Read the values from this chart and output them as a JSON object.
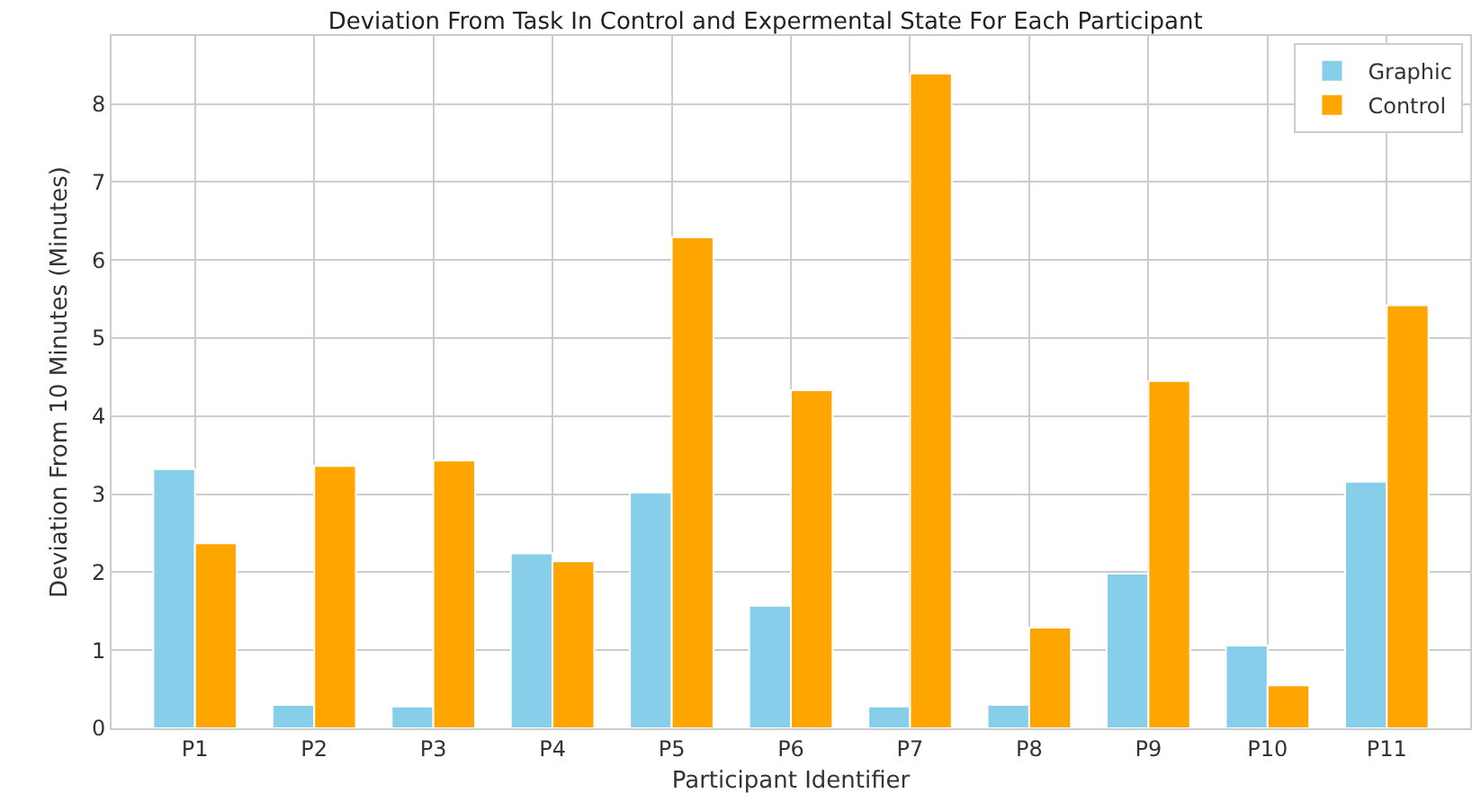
{
  "chart_data": {
    "type": "bar",
    "title": "Deviation From Task In Control and Expermental State For Each Participant",
    "xlabel": "Participant Identifier",
    "ylabel": "Deviation From 10 Minutes (Minutes)",
    "categories": [
      "P1",
      "P2",
      "P3",
      "P4",
      "P5",
      "P6",
      "P7",
      "P8",
      "P9",
      "P10",
      "P11"
    ],
    "series": [
      {
        "name": "Graphic",
        "color": "#87ceeb",
        "values": [
          3.32,
          0.3,
          0.28,
          2.24,
          3.02,
          1.57,
          0.28,
          0.3,
          1.98,
          1.06,
          3.16
        ]
      },
      {
        "name": "Control",
        "color": "#ffa500",
        "values": [
          2.37,
          3.36,
          3.43,
          2.14,
          6.29,
          4.33,
          8.39,
          1.29,
          4.45,
          0.55,
          5.42
        ]
      }
    ],
    "ylim": [
      0,
      8.87
    ],
    "yticks": [
      0,
      1,
      2,
      3,
      4,
      5,
      6,
      7,
      8
    ],
    "grid": true,
    "legend": "top right"
  }
}
